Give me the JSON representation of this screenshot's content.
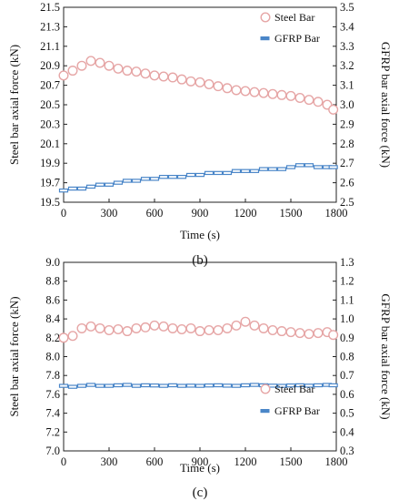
{
  "chart_data": [
    {
      "type": "scatter",
      "panel_label": "(b)",
      "xlabel": "Time (s)",
      "ylabel_left": "Steel bar axial force (kN)",
      "ylabel_right": "GFRP bar axial force (kN)",
      "xlim": [
        0,
        1800
      ],
      "ylim_left": [
        19.5,
        21.5
      ],
      "ylim_right": [
        2.5,
        3.5
      ],
      "x_ticks": [
        "0",
        "300",
        "600",
        "900",
        "1200",
        "1500",
        "1800"
      ],
      "y_ticks_left": [
        "19.5",
        "19.7",
        "19.9",
        "20.1",
        "20.3",
        "20.5",
        "20.7",
        "20.9",
        "21.1",
        "21.3",
        "21.5"
      ],
      "y_ticks_right": [
        "2.5",
        "2.6",
        "2.7",
        "2.8",
        "2.9",
        "3.0",
        "3.1",
        "3.2",
        "3.3",
        "3.4",
        "3.5"
      ],
      "legend_position": "top-right",
      "series": [
        {
          "name": "Steel Bar",
          "axis": "left",
          "marker": "circle",
          "color": "#e6a6a6",
          "points": [
            [
              0,
              20.8
            ],
            [
              60,
              20.85
            ],
            [
              120,
              20.9
            ],
            [
              180,
              20.95
            ],
            [
              240,
              20.93
            ],
            [
              300,
              20.9
            ],
            [
              360,
              20.87
            ],
            [
              420,
              20.85
            ],
            [
              480,
              20.84
            ],
            [
              540,
              20.82
            ],
            [
              600,
              20.8
            ],
            [
              660,
              20.79
            ],
            [
              720,
              20.78
            ],
            [
              780,
              20.76
            ],
            [
              840,
              20.74
            ],
            [
              900,
              20.73
            ],
            [
              960,
              20.71
            ],
            [
              1020,
              20.69
            ],
            [
              1080,
              20.67
            ],
            [
              1140,
              20.65
            ],
            [
              1200,
              20.64
            ],
            [
              1260,
              20.63
            ],
            [
              1320,
              20.62
            ],
            [
              1380,
              20.61
            ],
            [
              1440,
              20.6
            ],
            [
              1500,
              20.59
            ],
            [
              1560,
              20.57
            ],
            [
              1620,
              20.55
            ],
            [
              1680,
              20.53
            ],
            [
              1740,
              20.5
            ],
            [
              1780,
              20.45
            ]
          ]
        },
        {
          "name": "GFRP Bar",
          "axis": "right",
          "marker": "dash",
          "color": "#4a86c8",
          "points": [
            [
              0,
              2.56
            ],
            [
              60,
              2.57
            ],
            [
              120,
              2.57
            ],
            [
              180,
              2.58
            ],
            [
              240,
              2.59
            ],
            [
              300,
              2.59
            ],
            [
              360,
              2.6
            ],
            [
              420,
              2.61
            ],
            [
              480,
              2.61
            ],
            [
              540,
              2.62
            ],
            [
              600,
              2.62
            ],
            [
              660,
              2.63
            ],
            [
              720,
              2.63
            ],
            [
              780,
              2.63
            ],
            [
              840,
              2.64
            ],
            [
              900,
              2.64
            ],
            [
              960,
              2.65
            ],
            [
              1020,
              2.65
            ],
            [
              1080,
              2.65
            ],
            [
              1140,
              2.66
            ],
            [
              1200,
              2.66
            ],
            [
              1260,
              2.66
            ],
            [
              1320,
              2.67
            ],
            [
              1380,
              2.67
            ],
            [
              1440,
              2.67
            ],
            [
              1500,
              2.68
            ],
            [
              1560,
              2.69
            ],
            [
              1620,
              2.69
            ],
            [
              1680,
              2.68
            ],
            [
              1740,
              2.68
            ],
            [
              1780,
              2.68
            ]
          ]
        }
      ]
    },
    {
      "type": "scatter",
      "panel_label": "(c)",
      "xlabel": "Time (s)",
      "ylabel_left": "Steel bar axial force (kN)",
      "ylabel_right": "GFRP bar axial force (kN)",
      "xlim": [
        0,
        1800
      ],
      "ylim_left": [
        7.0,
        9.0
      ],
      "ylim_right": [
        0.3,
        1.3
      ],
      "x_ticks": [
        "0",
        "300",
        "600",
        "900",
        "1200",
        "1500",
        "1800"
      ],
      "y_ticks_left": [
        "7.0",
        "7.2",
        "7.4",
        "7.6",
        "7.8",
        "8.0",
        "8.2",
        "8.4",
        "8.6",
        "8.8",
        "9.0"
      ],
      "y_ticks_right": [
        "0.3",
        "0.4",
        "0.5",
        "0.6",
        "0.7",
        "0.8",
        "0.9",
        "1.0",
        "1.1",
        "1.2",
        "1.3"
      ],
      "legend_position": "bottom-right",
      "series": [
        {
          "name": "Steel Bar",
          "axis": "left",
          "marker": "circle",
          "color": "#e6a6a6",
          "points": [
            [
              0,
              8.2
            ],
            [
              60,
              8.22
            ],
            [
              120,
              8.3
            ],
            [
              180,
              8.32
            ],
            [
              240,
              8.3
            ],
            [
              300,
              8.28
            ],
            [
              360,
              8.29
            ],
            [
              420,
              8.27
            ],
            [
              480,
              8.3
            ],
            [
              540,
              8.31
            ],
            [
              600,
              8.33
            ],
            [
              660,
              8.32
            ],
            [
              720,
              8.3
            ],
            [
              780,
              8.29
            ],
            [
              840,
              8.3
            ],
            [
              900,
              8.27
            ],
            [
              960,
              8.28
            ],
            [
              1020,
              8.28
            ],
            [
              1080,
              8.3
            ],
            [
              1140,
              8.33
            ],
            [
              1200,
              8.37
            ],
            [
              1260,
              8.33
            ],
            [
              1320,
              8.3
            ],
            [
              1380,
              8.28
            ],
            [
              1440,
              8.27
            ],
            [
              1500,
              8.26
            ],
            [
              1560,
              8.25
            ],
            [
              1620,
              8.24
            ],
            [
              1680,
              8.25
            ],
            [
              1740,
              8.26
            ],
            [
              1780,
              8.23
            ]
          ]
        },
        {
          "name": "GFRP Bar",
          "axis": "right",
          "marker": "dash",
          "color": "#4a86c8",
          "points": [
            [
              0,
              0.645
            ],
            [
              60,
              0.64
            ],
            [
              120,
              0.645
            ],
            [
              180,
              0.65
            ],
            [
              240,
              0.645
            ],
            [
              300,
              0.645
            ],
            [
              360,
              0.648
            ],
            [
              420,
              0.65
            ],
            [
              480,
              0.645
            ],
            [
              540,
              0.648
            ],
            [
              600,
              0.647
            ],
            [
              660,
              0.645
            ],
            [
              720,
              0.648
            ],
            [
              780,
              0.645
            ],
            [
              840,
              0.646
            ],
            [
              900,
              0.645
            ],
            [
              960,
              0.647
            ],
            [
              1020,
              0.648
            ],
            [
              1080,
              0.646
            ],
            [
              1140,
              0.645
            ],
            [
              1200,
              0.648
            ],
            [
              1260,
              0.65
            ],
            [
              1320,
              0.648
            ],
            [
              1380,
              0.646
            ],
            [
              1440,
              0.645
            ],
            [
              1500,
              0.647
            ],
            [
              1560,
              0.648
            ],
            [
              1620,
              0.646
            ],
            [
              1680,
              0.648
            ],
            [
              1740,
              0.65
            ],
            [
              1780,
              0.648
            ]
          ]
        }
      ]
    }
  ]
}
